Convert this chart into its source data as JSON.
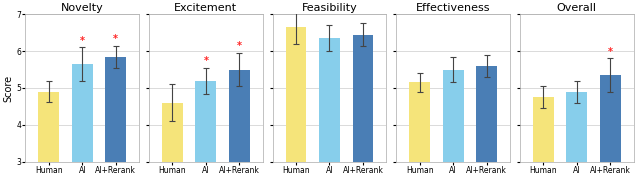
{
  "subplots": [
    {
      "title": "Novelty",
      "values": [
        4.9,
        5.65,
        5.85
      ],
      "errors": [
        0.28,
        0.45,
        0.3
      ],
      "sig": [
        false,
        true,
        true
      ]
    },
    {
      "title": "Excitement",
      "values": [
        4.6,
        5.2,
        5.5
      ],
      "errors": [
        0.5,
        0.35,
        0.45
      ],
      "sig": [
        false,
        true,
        true
      ]
    },
    {
      "title": "Feasibility",
      "values": [
        6.65,
        6.35,
        6.45
      ],
      "errors": [
        0.45,
        0.35,
        0.3
      ],
      "sig": [
        false,
        false,
        false
      ]
    },
    {
      "title": "Effectiveness",
      "values": [
        5.15,
        5.5,
        5.6
      ],
      "errors": [
        0.25,
        0.35,
        0.3
      ],
      "sig": [
        false,
        false,
        false
      ]
    },
    {
      "title": "Overall",
      "values": [
        4.75,
        4.9,
        5.35
      ],
      "errors": [
        0.3,
        0.3,
        0.45
      ],
      "sig": [
        false,
        false,
        true
      ]
    }
  ],
  "categories": [
    "Human",
    "AI",
    "AI+Rerank"
  ],
  "bar_colors": [
    "#f5e47a",
    "#87ceeb",
    "#4a7eb5"
  ],
  "ylabel": "Score",
  "ylim": [
    3,
    7
  ],
  "yticks": [
    3,
    4,
    5,
    6,
    7
  ],
  "background_color": "#ffffff",
  "grid_color": "#cccccc",
  "star_color": "#ff2222",
  "errorbar_color": "#444444",
  "bar_width": 0.62,
  "title_fontsize": 8,
  "tick_fontsize": 5.5,
  "ylabel_fontsize": 7,
  "star_fontsize": 7
}
